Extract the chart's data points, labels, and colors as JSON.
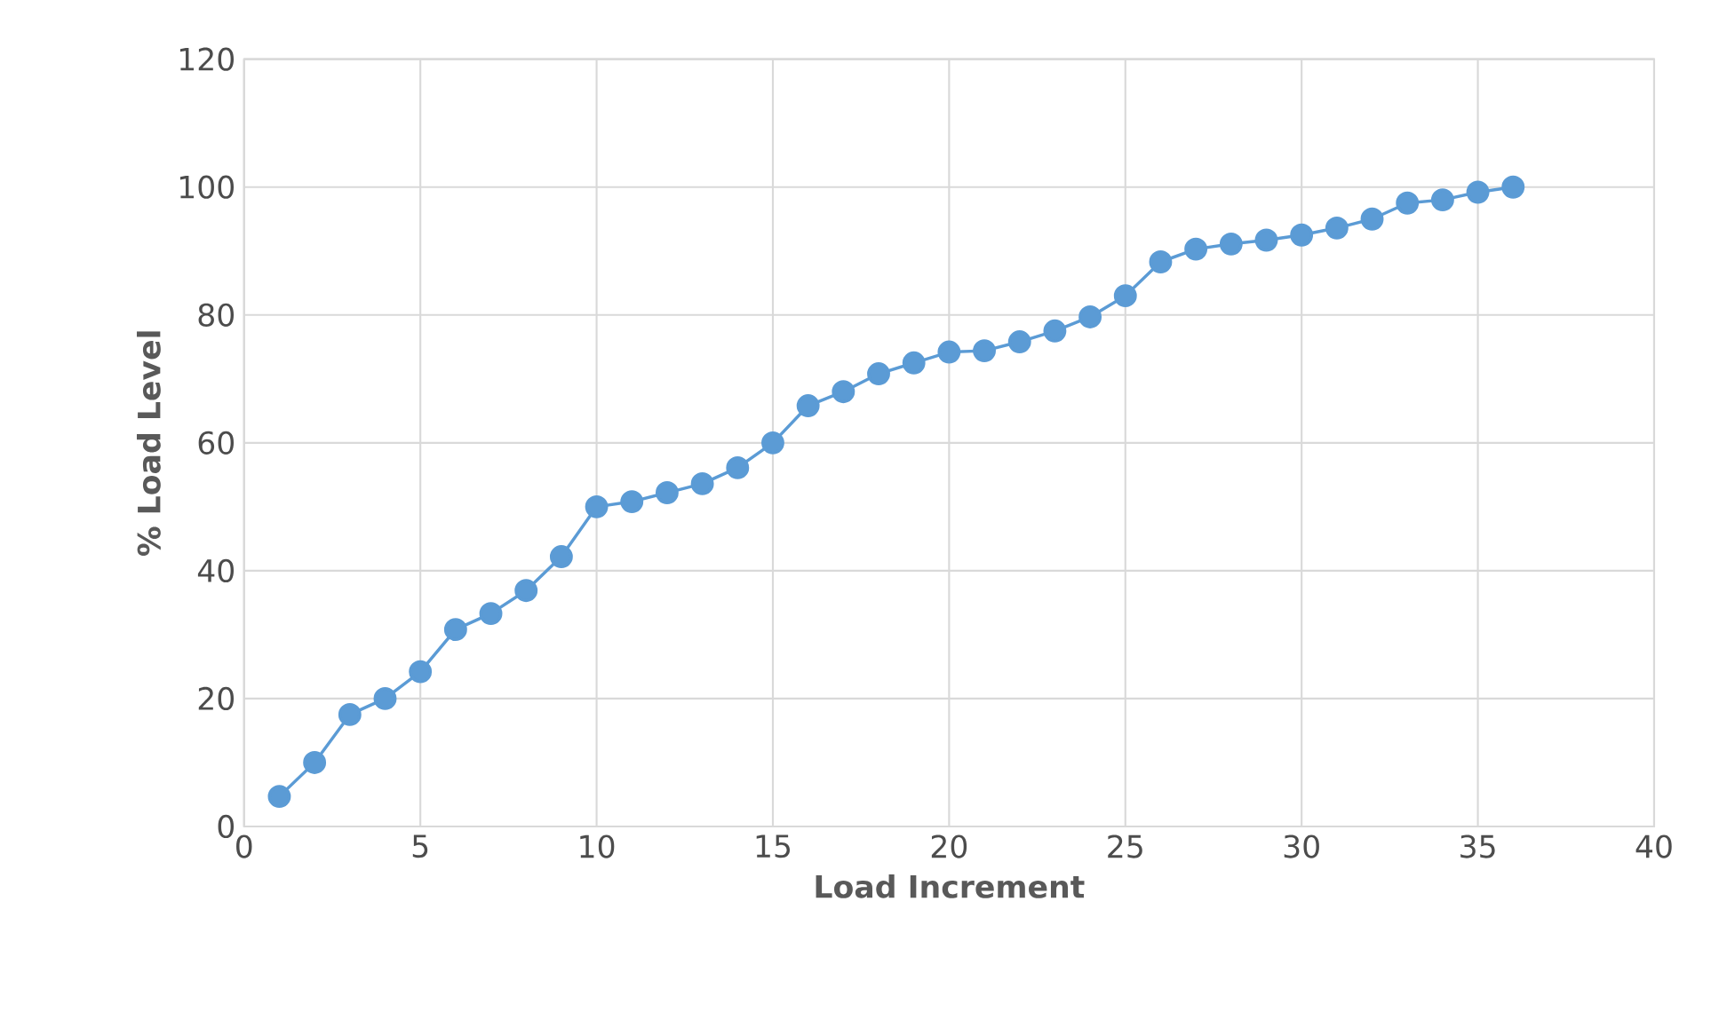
{
  "chart_data": {
    "type": "line",
    "xlabel": "Load Increment",
    "ylabel": "% Load Level",
    "x": [
      1,
      2,
      3,
      4,
      5,
      6,
      7,
      8,
      9,
      10,
      11,
      12,
      13,
      14,
      15,
      16,
      17,
      18,
      19,
      20,
      21,
      22,
      23,
      24,
      25,
      26,
      27,
      28,
      29,
      30,
      31,
      32,
      33,
      34,
      35,
      36
    ],
    "series": [
      {
        "color": "#5b9bd5",
        "values": [
          4.7,
          10,
          17.5,
          20,
          24.2,
          30.8,
          33.3,
          36.9,
          42.2,
          50,
          50.8,
          52.2,
          53.6,
          56.1,
          60,
          65.8,
          68,
          70.8,
          72.5,
          74.2,
          74.4,
          75.8,
          77.5,
          79.7,
          83,
          88.3,
          90.3,
          91.1,
          91.7,
          92.5,
          93.6,
          95,
          97.5,
          98,
          99.2,
          100
        ]
      }
    ],
    "xlim": [
      0,
      40
    ],
    "xticks": [
      0,
      5,
      10,
      15,
      20,
      25,
      30,
      35,
      40
    ],
    "ylim": [
      0,
      120
    ],
    "yticks": [
      0,
      20,
      40,
      60,
      80,
      100,
      120
    ],
    "grid": true,
    "marker": "circle",
    "line_style": "solid"
  }
}
